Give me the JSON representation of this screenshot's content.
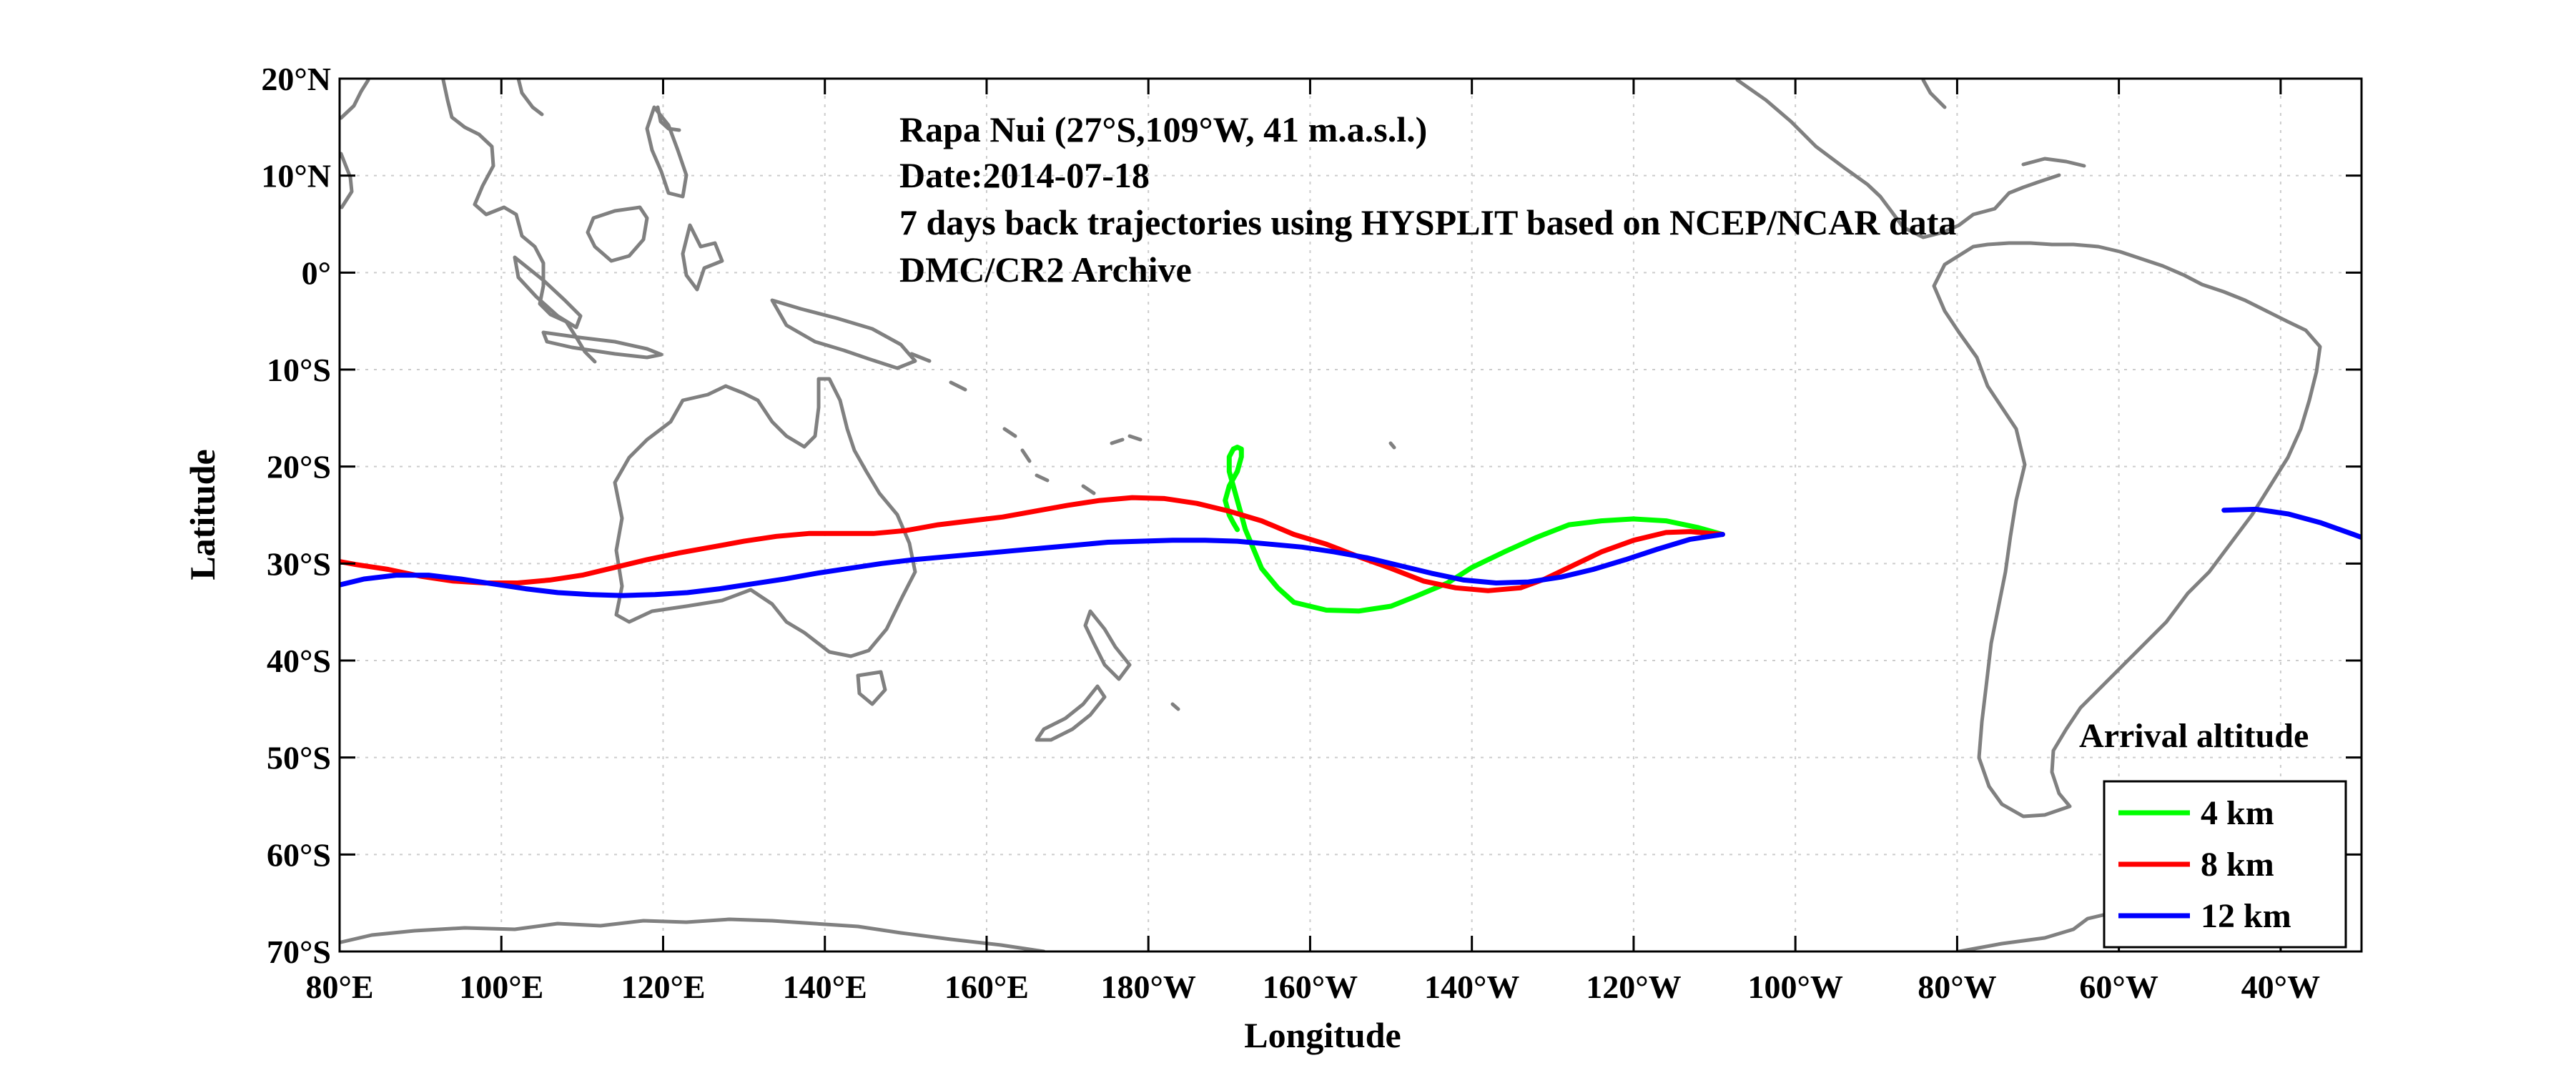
{
  "info": {
    "station": "Rapa Nui (27°S,109°W, 41 m.a.s.l.)",
    "date": "Date:2014-07-18",
    "description": "7 days back trajectories using HYSPLIT based on NCEP/NCAR data",
    "archive": "DMC/CR2 Archive"
  },
  "chart_data": {
    "type": "map",
    "xlabel": "Longitude",
    "ylabel": "Latitude",
    "xlim": [
      80,
      330
    ],
    "ylim": [
      -70,
      20
    ],
    "grid": true,
    "x_ticks": [
      {
        "value": 80,
        "label": "80°E"
      },
      {
        "value": 100,
        "label": "100°E"
      },
      {
        "value": 120,
        "label": "120°E"
      },
      {
        "value": 140,
        "label": "140°E"
      },
      {
        "value": 160,
        "label": "160°E"
      },
      {
        "value": 180,
        "label": "180°W"
      },
      {
        "value": 200,
        "label": "160°W"
      },
      {
        "value": 220,
        "label": "140°W"
      },
      {
        "value": 240,
        "label": "120°W"
      },
      {
        "value": 260,
        "label": "100°W"
      },
      {
        "value": 280,
        "label": "80°W"
      },
      {
        "value": 300,
        "label": "60°W"
      },
      {
        "value": 320,
        "label": "40°W"
      }
    ],
    "y_ticks": [
      {
        "value": 20,
        "label": "20°N"
      },
      {
        "value": 10,
        "label": "10°N"
      },
      {
        "value": 0,
        "label": "0°"
      },
      {
        "value": -10,
        "label": "10°S"
      },
      {
        "value": -20,
        "label": "20°S"
      },
      {
        "value": -30,
        "label": "30°S"
      },
      {
        "value": -40,
        "label": "40°S"
      },
      {
        "value": -50,
        "label": "50°S"
      },
      {
        "value": -60,
        "label": "60°S"
      },
      {
        "value": -70,
        "label": "70°S"
      }
    ],
    "legend": {
      "title": "Arrival altitude",
      "position": "bottom-right",
      "entries": [
        "4 km",
        "8 km",
        "12 km"
      ]
    },
    "coast_color": "#808080",
    "series": [
      {
        "name": "4 km",
        "color": "#00ff00",
        "x": [
          251,
          248,
          244,
          240,
          236,
          232,
          228,
          224,
          220,
          217,
          213,
          210,
          206,
          202,
          198,
          196,
          194,
          193,
          192,
          191.5,
          191,
          190.5,
          190,
          190,
          190.5,
          191,
          191.5,
          191.5,
          191,
          190,
          189.5,
          190,
          190.5,
          191
        ],
        "y": [
          -27,
          -26.3,
          -25.6,
          -25.4,
          -25.6,
          -26,
          -27.3,
          -28.8,
          -30.4,
          -32,
          -33.4,
          -34.4,
          -34.9,
          -34.8,
          -34,
          -32.5,
          -30.5,
          -28.5,
          -26.5,
          -25,
          -23.5,
          -22,
          -20.5,
          -19,
          -18.2,
          -18,
          -18.2,
          -19,
          -20.5,
          -22,
          -23.5,
          -25,
          -25.8,
          -26.5
        ]
      },
      {
        "name": "8 km",
        "color": "#ff0000",
        "x": [
          251,
          247,
          244,
          240,
          236,
          232,
          229,
          226,
          222,
          218,
          214,
          210,
          206,
          202,
          198,
          194,
          190,
          186,
          182,
          178,
          174,
          170,
          166,
          162,
          158,
          154,
          150,
          146,
          142,
          138,
          134,
          130,
          126,
          122,
          118,
          114,
          110,
          106,
          102,
          98,
          94,
          90,
          86,
          82,
          80
        ],
        "y": [
          -27,
          -26.7,
          -26.8,
          -27.6,
          -28.8,
          -30.4,
          -31.6,
          -32.5,
          -32.8,
          -32.5,
          -31.8,
          -30.5,
          -29.3,
          -28,
          -27,
          -25.6,
          -24.6,
          -23.8,
          -23.3,
          -23.2,
          -23.5,
          -24,
          -24.6,
          -25.2,
          -25.6,
          -26,
          -26.6,
          -26.9,
          -26.9,
          -26.9,
          -27.2,
          -27.7,
          -28.3,
          -28.9,
          -29.6,
          -30.4,
          -31.2,
          -31.7,
          -32,
          -32,
          -31.8,
          -31.3,
          -30.6,
          -30.1,
          -29.8
        ]
      },
      {
        "name": "12 km",
        "color": "#0000ff",
        "x": [
          251,
          247,
          243,
          239,
          235,
          231,
          227,
          223,
          219,
          215,
          211,
          207,
          203,
          199,
          195,
          191,
          187,
          183,
          179,
          175,
          171,
          167,
          163,
          159,
          155,
          151,
          147,
          143,
          139,
          135,
          131,
          127,
          123,
          119,
          115,
          111,
          107,
          103,
          99,
          95,
          91,
          87,
          83,
          80
        ],
        "y": [
          -27,
          -27.5,
          -28.5,
          -29.6,
          -30.6,
          -31.4,
          -31.9,
          -32,
          -31.7,
          -31,
          -30.2,
          -29.4,
          -28.8,
          -28.3,
          -28,
          -27.7,
          -27.6,
          -27.6,
          -27.7,
          -27.8,
          -28.1,
          -28.4,
          -28.7,
          -29,
          -29.3,
          -29.6,
          -30,
          -30.5,
          -31,
          -31.6,
          -32.1,
          -32.6,
          -33,
          -33.2,
          -33.3,
          -33.2,
          -33,
          -32.6,
          -32.1,
          -31.6,
          -31.2,
          -31.2,
          -31.6,
          -32.2
        ]
      },
      {
        "name": "12 km",
        "color": "#0000ff",
        "x": [
          313,
          317,
          321,
          325,
          329,
          330
        ],
        "y": [
          -24.5,
          -24.4,
          -24.9,
          -25.8,
          -27,
          -27.3
        ]
      }
    ]
  }
}
